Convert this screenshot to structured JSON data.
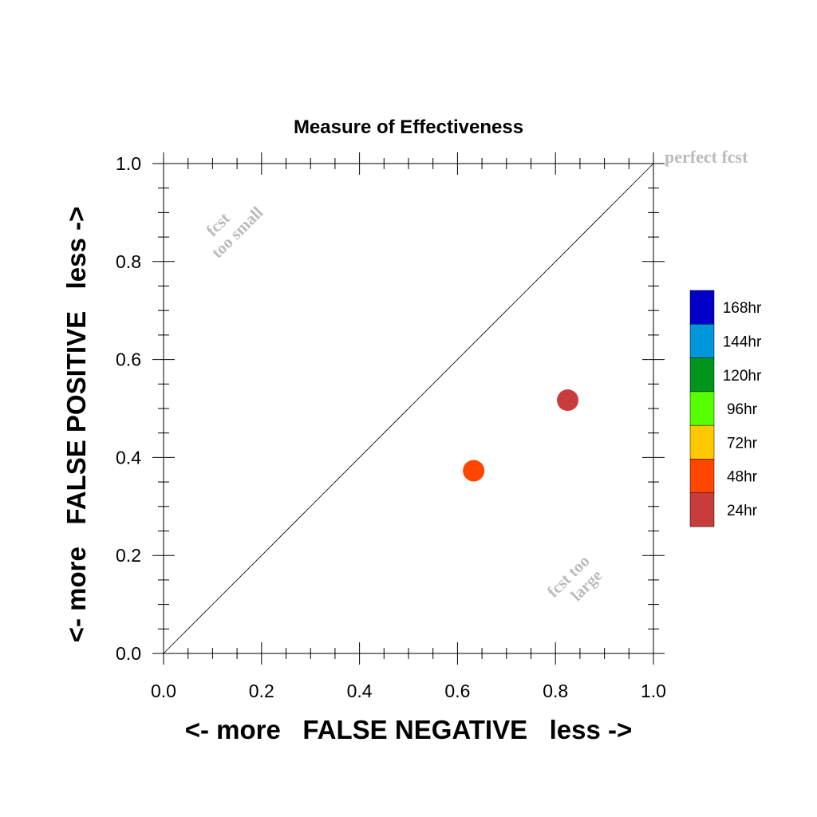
{
  "chart_data": {
    "type": "scatter",
    "title": "Measure of Effectiveness",
    "xlabel": "<- more   FALSE NEGATIVE   less ->",
    "ylabel": "<- more   FALSE POSITIVE   less ->",
    "xlim": [
      0.0,
      1.0
    ],
    "ylim": [
      0.0,
      1.0
    ],
    "x_ticks": [
      "0.0",
      "0.2",
      "0.4",
      "0.6",
      "0.8",
      "1.0"
    ],
    "y_ticks": [
      "0.0",
      "0.2",
      "0.4",
      "0.6",
      "0.8",
      "1.0"
    ],
    "grid": false,
    "diagonal": {
      "x": [
        0.0,
        1.0
      ],
      "y": [
        0.0,
        1.0
      ],
      "label": "perfect fcst"
    },
    "annotations": [
      {
        "lines": [
          "fcst",
          "too small"
        ]
      },
      {
        "lines": [
          "fcst too",
          "large"
        ]
      }
    ],
    "legend": {
      "placement": "right",
      "entries": [
        {
          "label": "168hr",
          "color": "#0000c8"
        },
        {
          "label": "144hr",
          "color": "#0096dc"
        },
        {
          "label": "120hr",
          "color": "#00961e"
        },
        {
          "label": "96hr",
          "color": "#55ff00"
        },
        {
          "label": "72hr",
          "color": "#ffc800"
        },
        {
          "label": "48hr",
          "color": "#ff4600"
        },
        {
          "label": "24hr",
          "color": "#c83c3c"
        }
      ]
    },
    "points": [
      {
        "x": 0.825,
        "y": 0.517,
        "color": "#c83c3c"
      },
      {
        "x": 0.633,
        "y": 0.373,
        "color": "#ff4600"
      }
    ]
  },
  "colors": {
    "annotation": "#bbbbbb",
    "axis": "#000000"
  }
}
